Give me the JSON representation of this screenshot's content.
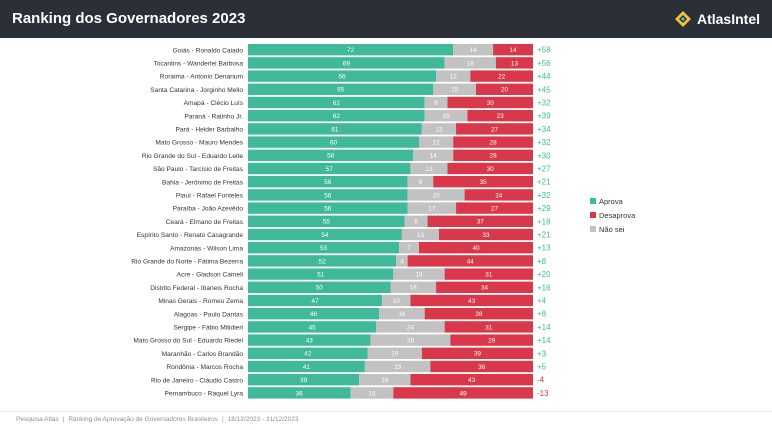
{
  "header": {
    "title": "Ranking dos Governadores 2023",
    "brand": "AtlasIntel"
  },
  "colors": {
    "approve": "#3fb99a",
    "disapprove": "#d9384a",
    "unsure": "#c2c2c2",
    "positive_net": "#3fb99a",
    "negative_net": "#d9384a",
    "header_bg": "#2b2f37"
  },
  "footer": {
    "source": "Pesquisa Atlas",
    "description": "Ranking de Aprovação de Governadores Brasileiros",
    "dates": "18/12/2023 - 31/12/2023"
  },
  "chart_data": {
    "type": "bar",
    "orientation": "horizontal",
    "stacked": true,
    "title": "Ranking dos Governadores 2023",
    "legend_position": "right",
    "grid": false,
    "categories": [
      "Goiás - Ronaldo Caiado",
      "Tocantins - Wanderlei Barbosa",
      "Roraima - Antonio Denarium",
      "Santa Catarina - Jorginho Mello",
      "Amapá - Clécio Luís",
      "Paraná - Ratinho Jr.",
      "Pará - Helder Barbalho",
      "Mato Grosso - Mauro Mendes",
      "Rio Grande do Sul - Eduardo Leite",
      "São Paulo - Tarcísio de Freitas",
      "Bahia - Jerônimo de Freitas",
      "Piauí - Rafael Fonteles",
      "Paraíba - João Azevêdo",
      "Ceará - Elmano de Freitas",
      "Espírito Santo - Renato Casagrande",
      "Amazonas - Wilson Lima",
      "Rio Grande do Norte - Fátima Bezerra",
      "Acre - Gladson Cameli",
      "Distrito Federal - Ibaneis Rocha",
      "Minas Gerais - Romeu Zema",
      "Alagoas - Paulo Dantas",
      "Sergipe - Fábio Mitidieri",
      "Mato Grosso do Sul - Eduardo Riedel",
      "Maranhão - Carlos Brandão",
      "Rondônia - Marcos Rocha",
      "Rio de Janeiro - Cláudio Castro",
      "Pernambuco - Raquel Lyra"
    ],
    "series": [
      {
        "name": "Aprova",
        "values": [
          72,
          69,
          66,
          65,
          62,
          62,
          61,
          60,
          58,
          57,
          56,
          56,
          56,
          55,
          54,
          53,
          52,
          51,
          50,
          47,
          46,
          45,
          43,
          42,
          41,
          39,
          36
        ]
      },
      {
        "name": "Não sei",
        "values": [
          14,
          18,
          12,
          15,
          8,
          15,
          12,
          12,
          14,
          13,
          9,
          20,
          17,
          8,
          13,
          7,
          4,
          18,
          16,
          10,
          16,
          24,
          28,
          19,
          23,
          18,
          15
        ]
      },
      {
        "name": "Desaprova",
        "values": [
          14,
          13,
          22,
          20,
          30,
          23,
          27,
          28,
          28,
          30,
          35,
          24,
          27,
          37,
          33,
          40,
          44,
          31,
          34,
          43,
          38,
          31,
          29,
          39,
          36,
          43,
          49
        ]
      }
    ],
    "net": [
      "+58",
      "+56",
      "+44",
      "+45",
      "+32",
      "+39",
      "+34",
      "+32",
      "+30",
      "+27",
      "+21",
      "+32",
      "+29",
      "+18",
      "+21",
      "+13",
      "+8",
      "+20",
      "+16",
      "+4",
      "+8",
      "+14",
      "+14",
      "+3",
      "+5",
      "-4",
      "-13"
    ],
    "legend": [
      "Aprova",
      "Desaprova",
      "Não sei"
    ],
    "xlim": [
      0,
      100
    ]
  }
}
